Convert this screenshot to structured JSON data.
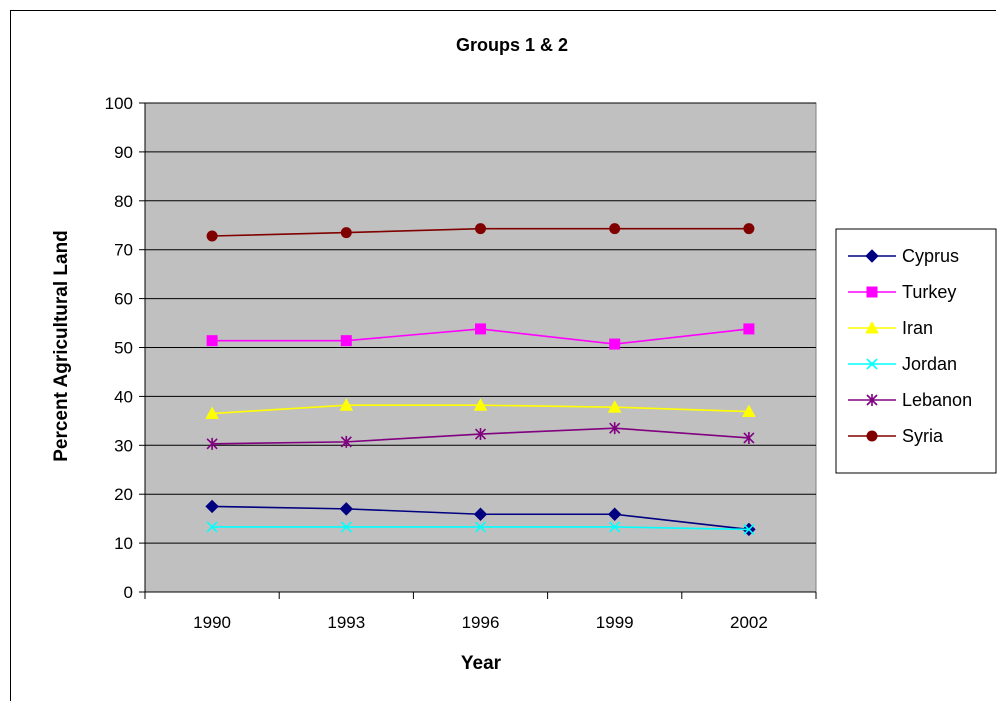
{
  "chart_data": {
    "type": "line",
    "title": "Groups 1 & 2",
    "xlabel": "Year",
    "ylabel": "Percent Agricultural Land",
    "categories": [
      "1990",
      "1993",
      "1996",
      "1999",
      "2002"
    ],
    "ylim": [
      0,
      100
    ],
    "yticks": [
      0,
      10,
      20,
      30,
      40,
      50,
      60,
      70,
      80,
      90,
      100
    ],
    "grid": true,
    "plot_background": "#c0c0c0",
    "legend_position": "right",
    "series": [
      {
        "name": "Cyprus",
        "color": "#000080",
        "marker": "diamond",
        "values": [
          17.5,
          17.0,
          15.9,
          15.9,
          12.8
        ]
      },
      {
        "name": "Turkey",
        "color": "#ff00ff",
        "marker": "square",
        "values": [
          51.4,
          51.4,
          53.8,
          50.7,
          53.8
        ]
      },
      {
        "name": "Iran",
        "color": "#ffff00",
        "marker": "triangle",
        "values": [
          36.5,
          38.2,
          38.2,
          37.8,
          36.9
        ]
      },
      {
        "name": "Jordan",
        "color": "#00ffff",
        "marker": "x",
        "values": [
          13.3,
          13.3,
          13.3,
          13.3,
          12.8
        ]
      },
      {
        "name": "Lebanon",
        "color": "#800080",
        "marker": "star",
        "values": [
          30.3,
          30.7,
          32.3,
          33.5,
          31.5
        ]
      },
      {
        "name": "Syria",
        "color": "#800000",
        "marker": "circle",
        "values": [
          72.8,
          73.5,
          74.3,
          74.3,
          74.3
        ]
      }
    ]
  }
}
